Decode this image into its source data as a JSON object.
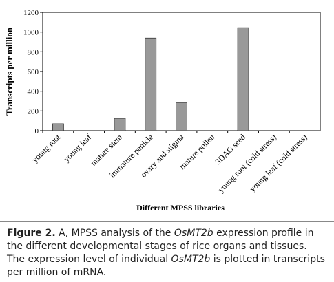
{
  "chart_data": {
    "type": "bar",
    "y_label": "Transcripts per million",
    "x_label": "Different  MPSS  libraries",
    "categories": [
      "young root",
      "young leaf",
      "mature stem",
      "immature panicle",
      "ovary and stigma",
      "mature pollen",
      "3DAG seed",
      "young root (cold stress)",
      "young leaf (cold stress)"
    ],
    "values": [
      70,
      0,
      125,
      940,
      285,
      0,
      1045,
      0,
      0
    ],
    "color": "#999999",
    "ylim": [
      0,
      1200
    ],
    "yticks": [
      0,
      200,
      400,
      600,
      800,
      1000,
      1200
    ],
    "grid": false
  },
  "caption": {
    "label": "Figure 2.",
    "parts": [
      " A, MPSS analysis of the ",
      "OsMT2b",
      " expression profile in the different developmental stages of rice organs and tissues. The expression level of individual ",
      "OsMT2b",
      " is plotted in transcripts per million of mRNA."
    ]
  }
}
